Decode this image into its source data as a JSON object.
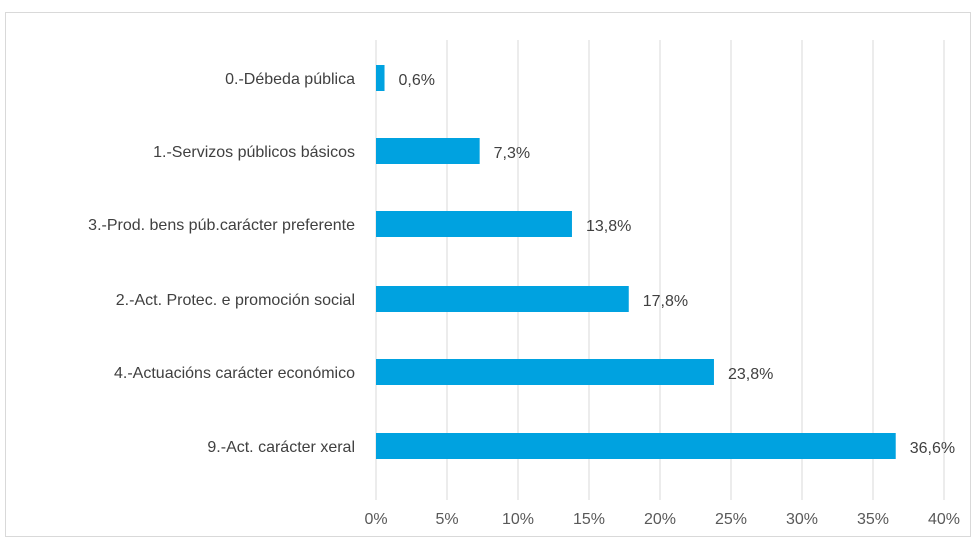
{
  "chart_data": {
    "type": "bar",
    "orientation": "horizontal",
    "title": "",
    "xlabel": "",
    "ylabel": "",
    "categories": [
      "0.-Débeda pública",
      "1.-Servizos públicos básicos",
      "3.-Prod. bens púb.carácter preferente",
      "2.-Act. Protec. e promoción social",
      "4.-Actuacións carácter económico",
      "9.-Act. carácter xeral"
    ],
    "values": [
      0.6,
      7.3,
      13.8,
      17.8,
      23.8,
      36.6
    ],
    "value_labels": [
      "0,6%",
      "7,3%",
      "13,8%",
      "17,8%",
      "23,8%",
      "36,6%"
    ],
    "xlim": [
      0,
      40
    ],
    "x_ticks": [
      0,
      5,
      10,
      15,
      20,
      25,
      30,
      35,
      40
    ],
    "x_tick_labels": [
      "0%",
      "5%",
      "10%",
      "15%",
      "20%",
      "25%",
      "30%",
      "35%",
      "40%"
    ],
    "grid": "vertical",
    "legend": "none",
    "bar_color": "#00a2e0",
    "grid_color": "#d9d9d9"
  }
}
